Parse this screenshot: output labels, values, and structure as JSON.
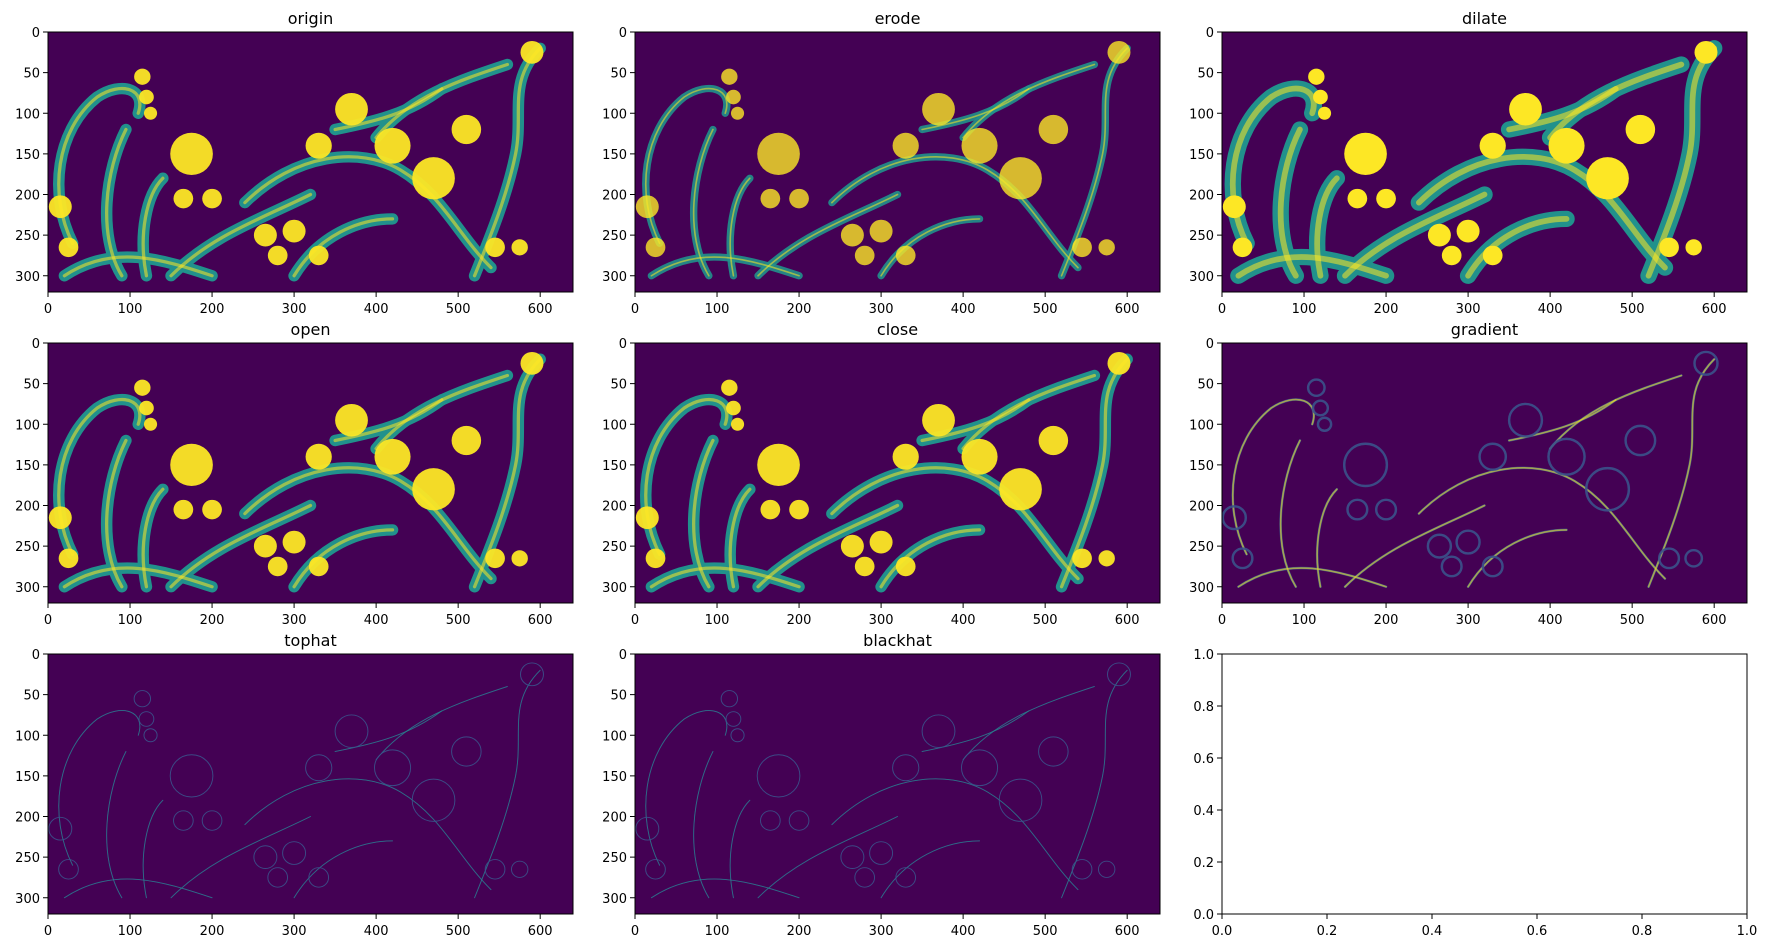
{
  "colors": {
    "background": "#440154",
    "mid": "#21918c",
    "bright": "#fde725",
    "edge": "#3b528b"
  },
  "chart_data": [
    {
      "type": "heatmap",
      "title": "origin",
      "xticks": [
        0,
        100,
        200,
        300,
        400,
        500,
        600
      ],
      "yticks": [
        0,
        50,
        100,
        150,
        200,
        250,
        300
      ],
      "xlim": [
        0,
        640
      ],
      "ylim": [
        320,
        0
      ],
      "rendering": "filled-ornament"
    },
    {
      "type": "heatmap",
      "title": "erode",
      "xticks": [
        0,
        100,
        200,
        300,
        400,
        500,
        600
      ],
      "yticks": [
        0,
        50,
        100,
        150,
        200,
        250,
        300
      ],
      "xlim": [
        0,
        640
      ],
      "ylim": [
        320,
        0
      ],
      "rendering": "thin-ornament"
    },
    {
      "type": "heatmap",
      "title": "dilate",
      "xticks": [
        0,
        100,
        200,
        300,
        400,
        500,
        600
      ],
      "yticks": [
        0,
        50,
        100,
        150,
        200,
        250,
        300
      ],
      "xlim": [
        0,
        640
      ],
      "ylim": [
        320,
        0
      ],
      "rendering": "bold-ornament"
    },
    {
      "type": "heatmap",
      "title": "open",
      "xticks": [
        0,
        100,
        200,
        300,
        400,
        500,
        600
      ],
      "yticks": [
        0,
        50,
        100,
        150,
        200,
        250,
        300
      ],
      "xlim": [
        0,
        640
      ],
      "ylim": [
        320,
        0
      ],
      "rendering": "filled-ornament"
    },
    {
      "type": "heatmap",
      "title": "close",
      "xticks": [
        0,
        100,
        200,
        300,
        400,
        500,
        600
      ],
      "yticks": [
        0,
        50,
        100,
        150,
        200,
        250,
        300
      ],
      "xlim": [
        0,
        640
      ],
      "ylim": [
        320,
        0
      ],
      "rendering": "filled-ornament"
    },
    {
      "type": "heatmap",
      "title": "gradient",
      "xticks": [
        0,
        100,
        200,
        300,
        400,
        500,
        600
      ],
      "yticks": [
        0,
        50,
        100,
        150,
        200,
        250,
        300
      ],
      "xlim": [
        0,
        640
      ],
      "ylim": [
        320,
        0
      ],
      "rendering": "edge-ornament"
    },
    {
      "type": "heatmap",
      "title": "tophat",
      "xticks": [
        0,
        100,
        200,
        300,
        400,
        500,
        600
      ],
      "yticks": [
        0,
        50,
        100,
        150,
        200,
        250,
        300
      ],
      "xlim": [
        0,
        640
      ],
      "ylim": [
        320,
        0
      ],
      "rendering": "faint-ornament"
    },
    {
      "type": "heatmap",
      "title": "blackhat",
      "xticks": [
        0,
        100,
        200,
        300,
        400,
        500,
        600
      ],
      "yticks": [
        0,
        50,
        100,
        150,
        200,
        250,
        300
      ],
      "xlim": [
        0,
        640
      ],
      "ylim": [
        320,
        0
      ],
      "rendering": "faint-ornament"
    },
    {
      "type": "empty",
      "title": "",
      "xticks": [
        "0.0",
        "0.2",
        "0.4",
        "0.6",
        "0.8",
        "1.0"
      ],
      "yticks": [
        "0.0",
        "0.2",
        "0.4",
        "0.6",
        "0.8",
        "1.0"
      ],
      "xlim": [
        0,
        1
      ],
      "ylim": [
        0,
        1
      ]
    }
  ]
}
